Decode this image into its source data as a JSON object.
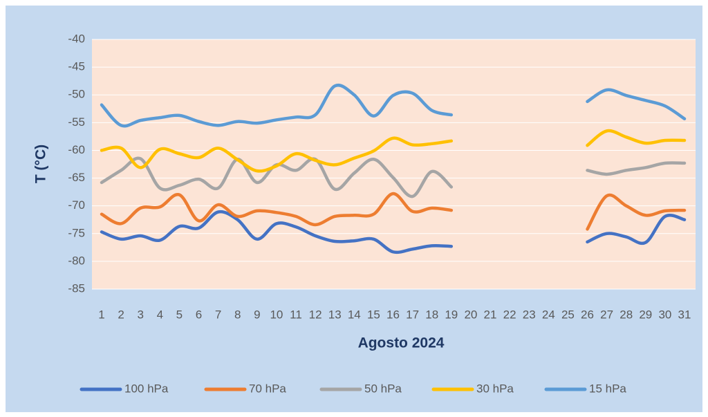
{
  "chart_data": {
    "type": "line",
    "x_label": "Agosto 2024",
    "y_label": "T (°C)",
    "categories": [
      "1",
      "2",
      "3",
      "4",
      "5",
      "6",
      "7",
      "8",
      "9",
      "10",
      "11",
      "12",
      "13",
      "14",
      "15",
      "16",
      "17",
      "18",
      "19",
      "20",
      "21",
      "22",
      "23",
      "24",
      "25",
      "26",
      "27",
      "28",
      "29",
      "30",
      "31"
    ],
    "ylim": [
      -85,
      -40
    ],
    "yticks": [
      -40,
      -45,
      -50,
      -55,
      -60,
      -65,
      -70,
      -75,
      -80,
      -85
    ],
    "grid": true,
    "legend": "bottom",
    "series": [
      {
        "name": "100 hPa",
        "color": "#4472c4",
        "values": [
          -74.7,
          -76,
          -75.4,
          -76.2,
          -73.7,
          -74,
          -71.1,
          -72.5,
          -76,
          -73.2,
          -73.8,
          -75.4,
          -76.4,
          -76.3,
          -76,
          -78.3,
          -77.8,
          -77.2,
          -77.3,
          null,
          null,
          null,
          null,
          null,
          null,
          -76.5,
          -75,
          -75.6,
          -76.6,
          -71.9,
          -72.5
        ]
      },
      {
        "name": "70 hPa",
        "color": "#ed7d31",
        "values": [
          -71.5,
          -73.2,
          -70.4,
          -70.2,
          -68,
          -72.7,
          -69.8,
          -71.9,
          -70.9,
          -71.2,
          -71.9,
          -73.4,
          -71.9,
          -71.7,
          -71.5,
          -67.8,
          -71,
          -70.4,
          -70.8,
          null,
          null,
          null,
          null,
          null,
          null,
          -74.2,
          -68.2,
          -70,
          -71.7,
          -70.9,
          -70.8
        ]
      },
      {
        "name": "50 hPa",
        "color": "#a5a5a5",
        "values": [
          -65.8,
          -63.6,
          -61.5,
          -66.8,
          -66.3,
          -65.2,
          -66.8,
          -61.6,
          -65.8,
          -62.6,
          -63.6,
          -61.6,
          -67,
          -64.1,
          -61.6,
          -64.9,
          -68.3,
          -63.8,
          -66.6,
          null,
          null,
          null,
          null,
          null,
          null,
          -63.6,
          -64.3,
          -63.6,
          -63.1,
          -62.3,
          -62.3
        ]
      },
      {
        "name": "30 hPa",
        "color": "#ffc000",
        "values": [
          -60,
          -59.6,
          -63.1,
          -59.8,
          -60.6,
          -61.3,
          -59.6,
          -61.7,
          -63.7,
          -62.8,
          -60.6,
          -61.8,
          -62.6,
          -61.4,
          -60.1,
          -57.8,
          -59,
          -58.8,
          -58.3,
          null,
          null,
          null,
          null,
          null,
          null,
          -59.1,
          -56.5,
          -57.6,
          -58.7,
          -58.2,
          -58.2
        ]
      },
      {
        "name": "15 hPa",
        "color": "#5b9bd5",
        "values": [
          -51.8,
          -55.5,
          -54.6,
          -54.1,
          -53.7,
          -54.8,
          -55.5,
          -54.8,
          -55.1,
          -54.5,
          -54,
          -53.6,
          -48.4,
          -50,
          -53.8,
          -50.1,
          -49.7,
          -52.8,
          -53.6,
          null,
          null,
          null,
          null,
          null,
          null,
          -51.2,
          -49.1,
          -50.1,
          -51,
          -52,
          -54.3
        ]
      }
    ]
  }
}
